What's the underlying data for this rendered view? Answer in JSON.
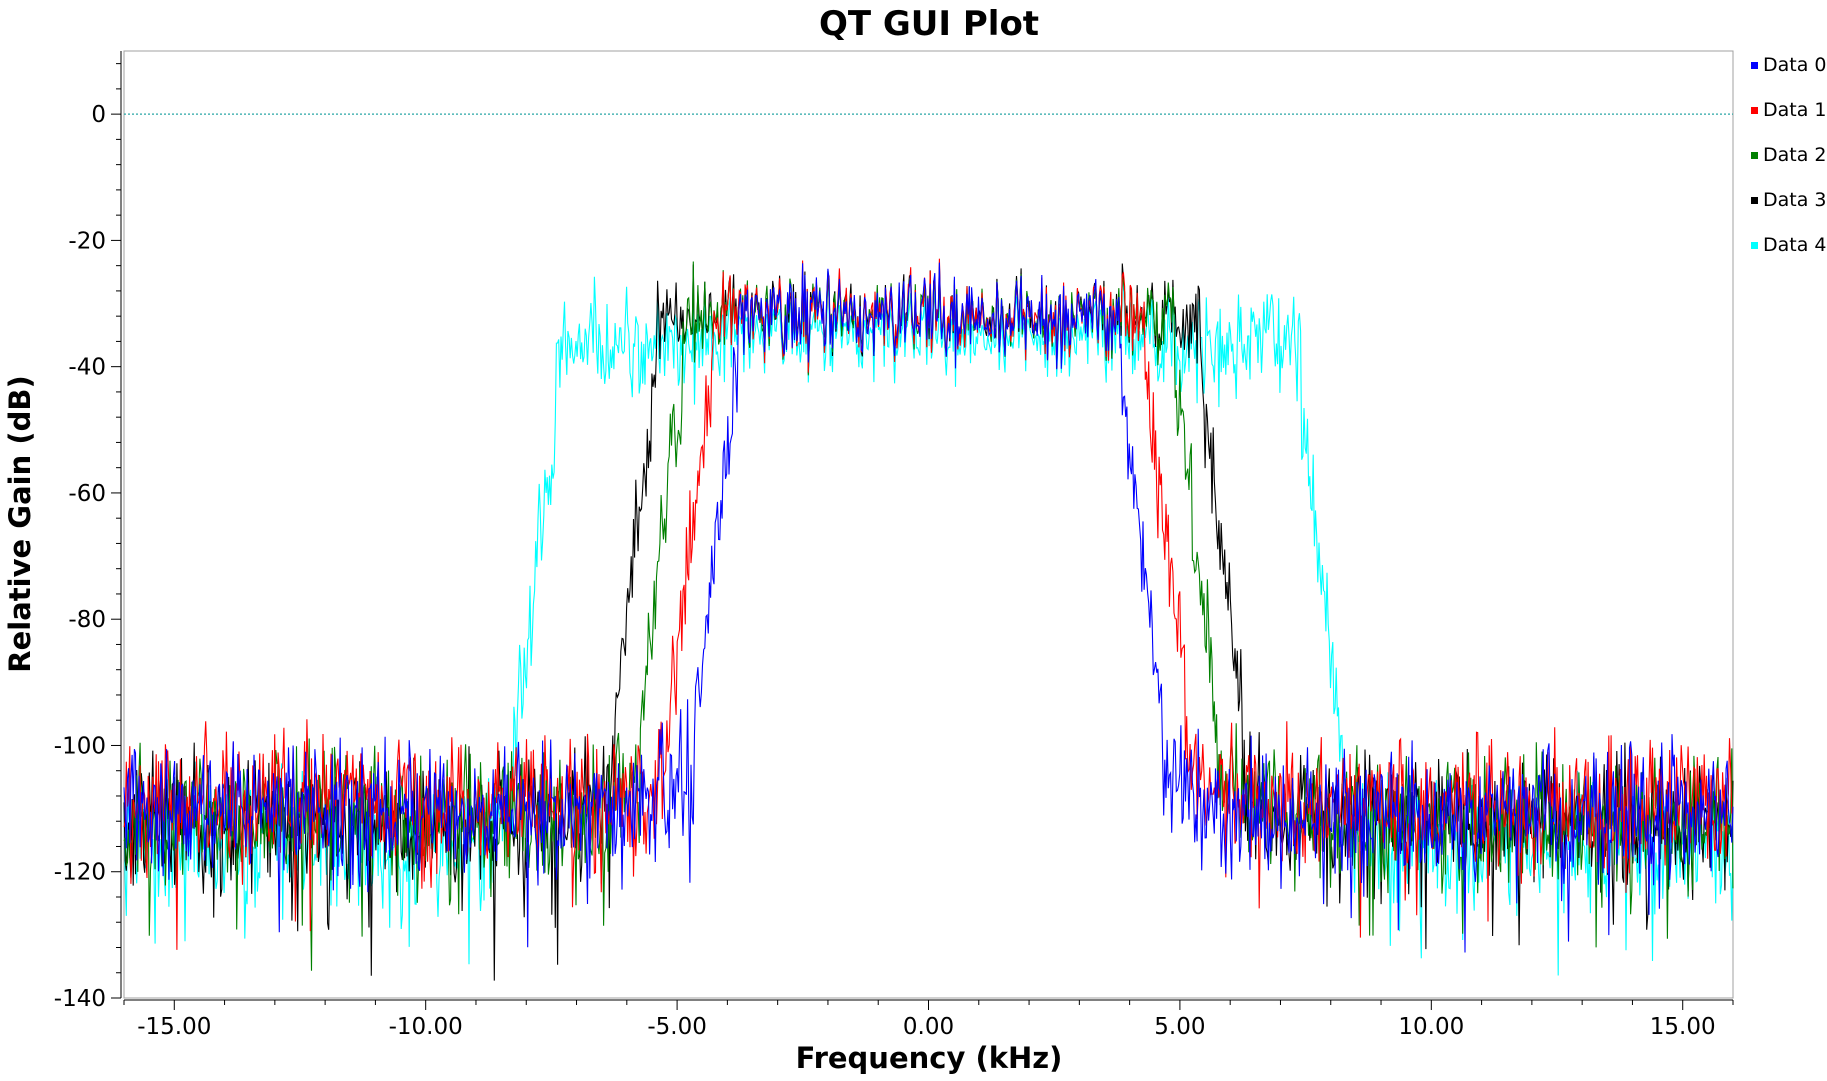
{
  "window": {
    "title": "QT GUI Plot"
  },
  "chart_data": {
    "type": "line",
    "title": "QT GUI Plot",
    "xlabel": "Frequency (kHz)",
    "ylabel": "Relative Gain (dB)",
    "xlim": [
      -16.0,
      16.0
    ],
    "ylim": [
      -140,
      10
    ],
    "x_ticks": [
      -15,
      -10,
      -5,
      0,
      5,
      10,
      15
    ],
    "x_tick_labels": [
      "-15.00",
      "-10.00",
      "-5.00",
      "0.00",
      "5.00",
      "10.00",
      "15.00"
    ],
    "y_ticks": [
      0,
      -20,
      -40,
      -60,
      -80,
      -100,
      -120,
      -140
    ],
    "y_tick_labels": [
      "0",
      "-20",
      "-40",
      "-60",
      "-80",
      "-100",
      "-120",
      "-140"
    ],
    "reference_line": {
      "y": 0,
      "color": "#2aa6a6"
    },
    "grid": false,
    "legend_position": "top-right",
    "series": [
      {
        "name": "Data 0",
        "color": "#0000ff",
        "passband_edge_khz": 4.4,
        "floor_db": -110,
        "peak_db": -32
      },
      {
        "name": "Data 1",
        "color": "#ff0000",
        "passband_edge_khz": 4.9,
        "floor_db": -109,
        "peak_db": -32
      },
      {
        "name": "Data 2",
        "color": "#008000",
        "passband_edge_khz": 5.5,
        "floor_db": -111,
        "peak_db": -32
      },
      {
        "name": "Data 3",
        "color": "#000000",
        "passband_edge_khz": 6.0,
        "floor_db": -112,
        "peak_db": -32
      },
      {
        "name": "Data 4",
        "color": "#00ffff",
        "passband_edge_khz": 8.0,
        "floor_db": -115,
        "peak_db": -35
      }
    ]
  }
}
